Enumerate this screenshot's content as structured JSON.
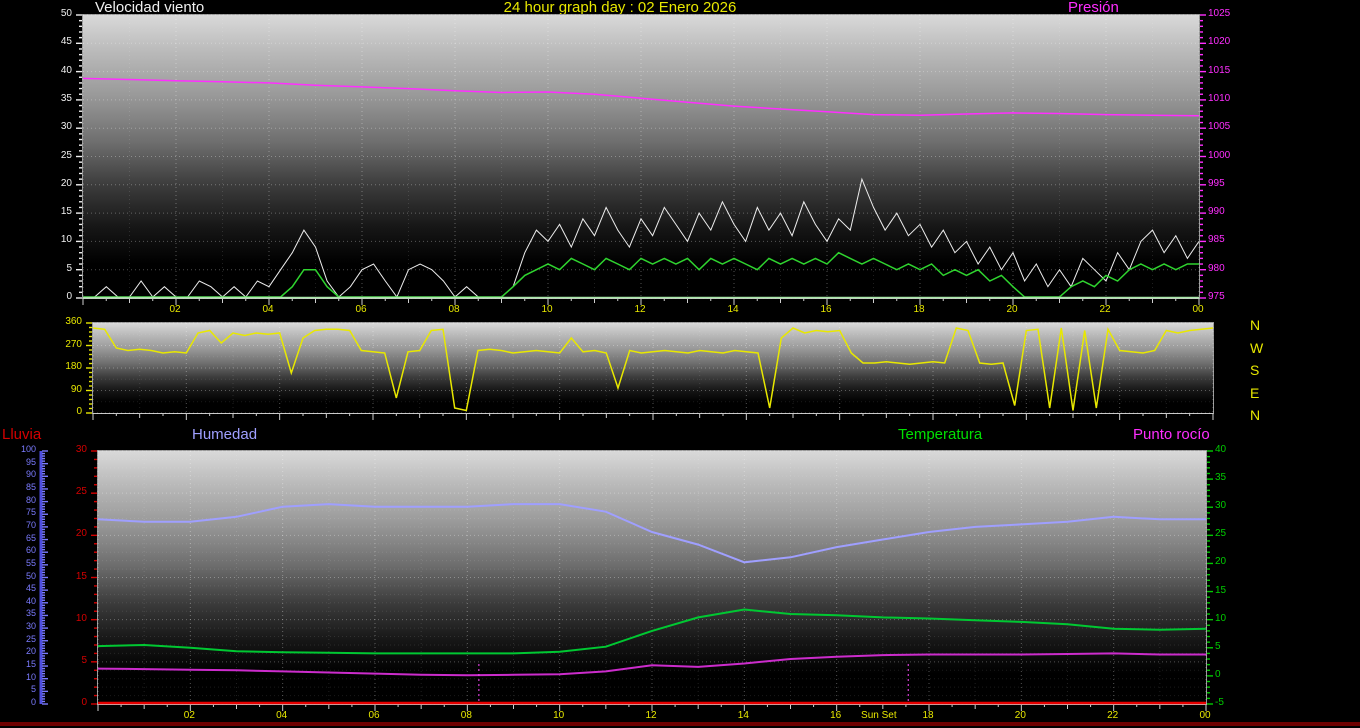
{
  "header": {
    "wind_label": "Velocidad viento",
    "title": "24 hour graph day : 02 Enero 2026",
    "pressure_label": "Presión"
  },
  "bottom_header": {
    "rain_label": "Lluvia",
    "humidity_label": "Humedad",
    "temperature_label": "Temperatura",
    "dew_label": "Punto rocío"
  },
  "compass_labels": [
    "N",
    "W",
    "S",
    "E",
    "N"
  ],
  "colors": {
    "title_yellow": "#e8e800",
    "axis_white": "#f0f0f0",
    "pressure_magenta": "#ff2eff",
    "temperature_green": "#00c832",
    "humidity_blue": "#9f9fff",
    "rain_red": "#d40000",
    "direction_yellow": "#e8e800"
  },
  "chart_data": [
    {
      "type": "line",
      "name": "wind-speed-pressure-chart",
      "title": "24 hour graph day : 02 Enero 2026",
      "x": {
        "unit": "hours",
        "range": [
          0,
          24
        ],
        "tick_hours": [
          2,
          4,
          6,
          8,
          10,
          12,
          14,
          16,
          18,
          20,
          22,
          24
        ],
        "tick_labels": [
          "02",
          "04",
          "06",
          "08",
          "10",
          "12",
          "14",
          "16",
          "18",
          "20",
          "22",
          "00"
        ]
      },
      "axes": {
        "left": {
          "label": "Velocidad viento",
          "min": 0,
          "max": 50,
          "tick_step": 5,
          "color": "#f0f0f0",
          "side": "left",
          "offset": 0
        },
        "right": {
          "label": "Presión",
          "min": 975,
          "max": 1025,
          "tick_step": 5,
          "color": "#ff2eff",
          "side": "right",
          "offset": 0
        }
      },
      "baseline_color": "#a8e8a8",
      "series": [
        {
          "name": "wind-gust",
          "axis": "left",
          "color": "#ededed",
          "width": 1,
          "step_hours": 0.25,
          "values": [
            0,
            0,
            2,
            0,
            0,
            3,
            0,
            2,
            0,
            0,
            3,
            2,
            0,
            2,
            0,
            3,
            2,
            5,
            8,
            12,
            9,
            3,
            0,
            2,
            5,
            6,
            3,
            0,
            5,
            6,
            5,
            3,
            0,
            2,
            0,
            0,
            0,
            2,
            8,
            12,
            10,
            13,
            9,
            14,
            11,
            16,
            12,
            9,
            14,
            11,
            16,
            13,
            10,
            15,
            12,
            17,
            13,
            10,
            16,
            12,
            15,
            11,
            17,
            13,
            10,
            14,
            12,
            21,
            16,
            12,
            15,
            11,
            13,
            9,
            12,
            8,
            10,
            6,
            9,
            5,
            8,
            3,
            6,
            2,
            5,
            2,
            7,
            5,
            3,
            8,
            5,
            10,
            12,
            8,
            11,
            7,
            10
          ]
        },
        {
          "name": "wind-average",
          "axis": "left",
          "color": "#2fd42f",
          "width": 1.5,
          "step_hours": 0.25,
          "values": [
            0,
            0,
            0,
            0,
            0,
            0,
            0,
            0,
            0,
            0,
            0,
            0,
            0,
            0,
            0,
            0,
            0,
            0,
            2,
            5,
            5,
            2,
            0,
            0,
            0,
            0,
            0,
            0,
            0,
            0,
            0,
            0,
            0,
            0,
            0,
            0,
            0,
            2,
            4,
            5,
            6,
            5,
            7,
            6,
            5,
            7,
            6,
            5,
            7,
            6,
            7,
            6,
            7,
            5,
            7,
            6,
            7,
            6,
            5,
            7,
            6,
            7,
            6,
            7,
            6,
            8,
            7,
            6,
            7,
            6,
            5,
            6,
            5,
            6,
            4,
            5,
            4,
            5,
            3,
            4,
            2,
            0,
            0,
            0,
            0,
            2,
            3,
            2,
            4,
            3,
            5,
            6,
            5,
            6,
            5,
            6,
            6
          ]
        },
        {
          "name": "pressure",
          "axis": "right",
          "color": "#ff2eff",
          "width": 1.5,
          "step_hours": 1,
          "values": [
            1013.8,
            1013.6,
            1013.4,
            1013.2,
            1013.0,
            1012.6,
            1012.3,
            1012.0,
            1011.6,
            1011.3,
            1011.4,
            1011.0,
            1010.3,
            1009.6,
            1008.9,
            1008.4,
            1007.9,
            1007.4,
            1007.3,
            1007.5,
            1007.7,
            1007.6,
            1007.4,
            1007.3,
            1007.2
          ]
        }
      ]
    },
    {
      "type": "line",
      "name": "wind-direction-chart",
      "x": {
        "unit": "hours",
        "range": [
          0,
          24
        ]
      },
      "axes": {
        "left": {
          "label": "",
          "min": 0,
          "max": 360,
          "tick_step": 90,
          "color": "#e8e800",
          "side": "left",
          "offset": 0
        }
      },
      "right_compass": true,
      "series": [
        {
          "name": "wind-direction",
          "axis": "left",
          "color": "#e8e800",
          "width": 1.5,
          "step_hours": 0.25,
          "values": [
            340,
            335,
            260,
            250,
            255,
            250,
            240,
            245,
            240,
            320,
            330,
            280,
            320,
            310,
            320,
            315,
            320,
            160,
            300,
            330,
            335,
            335,
            330,
            250,
            245,
            240,
            60,
            245,
            250,
            330,
            335,
            20,
            10,
            250,
            255,
            250,
            240,
            245,
            250,
            245,
            240,
            300,
            245,
            250,
            240,
            100,
            250,
            240,
            245,
            250,
            245,
            240,
            250,
            245,
            240,
            250,
            245,
            240,
            20,
            300,
            340,
            320,
            330,
            325,
            330,
            240,
            200,
            200,
            205,
            200,
            195,
            200,
            205,
            200,
            340,
            330,
            200,
            195,
            200,
            30,
            330,
            335,
            20,
            340,
            10,
            330,
            20,
            335,
            250,
            245,
            240,
            250,
            330,
            320,
            330,
            335,
            340
          ]
        }
      ]
    },
    {
      "type": "line",
      "name": "humidity-temperature-chart",
      "x": {
        "unit": "hours",
        "range": [
          0,
          24
        ],
        "tick_hours": [
          2,
          4,
          6,
          8,
          10,
          12,
          14,
          16,
          18,
          20,
          22,
          24
        ],
        "tick_labels": [
          "02",
          "04",
          "06",
          "08",
          "10",
          "12",
          "14",
          "16",
          "18",
          "20",
          "22",
          "00"
        ]
      },
      "axes": {
        "humidity_left": {
          "label": "Humedad",
          "min": 0,
          "max": 100,
          "tick_step": 5,
          "color": "#7b7bff",
          "side": "left",
          "offset": -57,
          "ruler": true,
          "small": true
        },
        "rain_left": {
          "label": "Lluvia",
          "min": 0,
          "max": 30,
          "tick_step": 5,
          "color": "#d40000",
          "side": "left",
          "offset": 0
        },
        "temp_right": {
          "label": "Temperatura",
          "min": -5,
          "max": 40,
          "tick_step": 5,
          "color": "#00cc00",
          "side": "right",
          "offset": 0
        }
      },
      "series": [
        {
          "name": "humidity",
          "axis": "humidity_left",
          "color": "#9f9fff",
          "width": 2,
          "step_hours": 1,
          "values": [
            73,
            72,
            72,
            74,
            78,
            79,
            78,
            78,
            78,
            79,
            79,
            76,
            68,
            63,
            56,
            58,
            62,
            65,
            68,
            70,
            71,
            72,
            74,
            73,
            73
          ]
        },
        {
          "name": "temperature",
          "axis": "temp_right",
          "color": "#00c832",
          "width": 2,
          "step_hours": 1,
          "values": [
            5.3,
            5.5,
            5.0,
            4.4,
            4.2,
            4.1,
            4.0,
            4.0,
            4.0,
            4.0,
            4.3,
            5.2,
            8.0,
            10.4,
            11.8,
            11.0,
            10.8,
            10.4,
            10.2,
            9.9,
            9.6,
            9.2,
            8.4,
            8.2,
            8.4
          ]
        },
        {
          "name": "dew-point",
          "axis": "temp_right",
          "color": "#cc2ccc",
          "width": 2,
          "step_hours": 1,
          "values": [
            1.3,
            1.2,
            1.1,
            1.0,
            0.8,
            0.6,
            0.4,
            0.2,
            0.1,
            0.2,
            0.3,
            0.8,
            1.9,
            1.6,
            2.2,
            3.0,
            3.4,
            3.7,
            3.8,
            3.8,
            3.8,
            3.9,
            4.0,
            3.8,
            3.8
          ]
        },
        {
          "name": "rain",
          "axis": "rain_left",
          "color": "#e60000",
          "width": 2.5,
          "step_hours": 24,
          "values": [
            0,
            0
          ]
        }
      ],
      "markers": [
        {
          "name": "sunrise-marker",
          "x_hours": 8.25,
          "color": "#ff49ff"
        },
        {
          "name": "sunset-marker",
          "x_hours": 17.55,
          "color": "#ff49ff"
        }
      ],
      "annotations": [
        {
          "name": "sunset-annotation",
          "text": "Sun Set",
          "x_hours": 16.55,
          "color": "#e8e800"
        }
      ]
    }
  ]
}
